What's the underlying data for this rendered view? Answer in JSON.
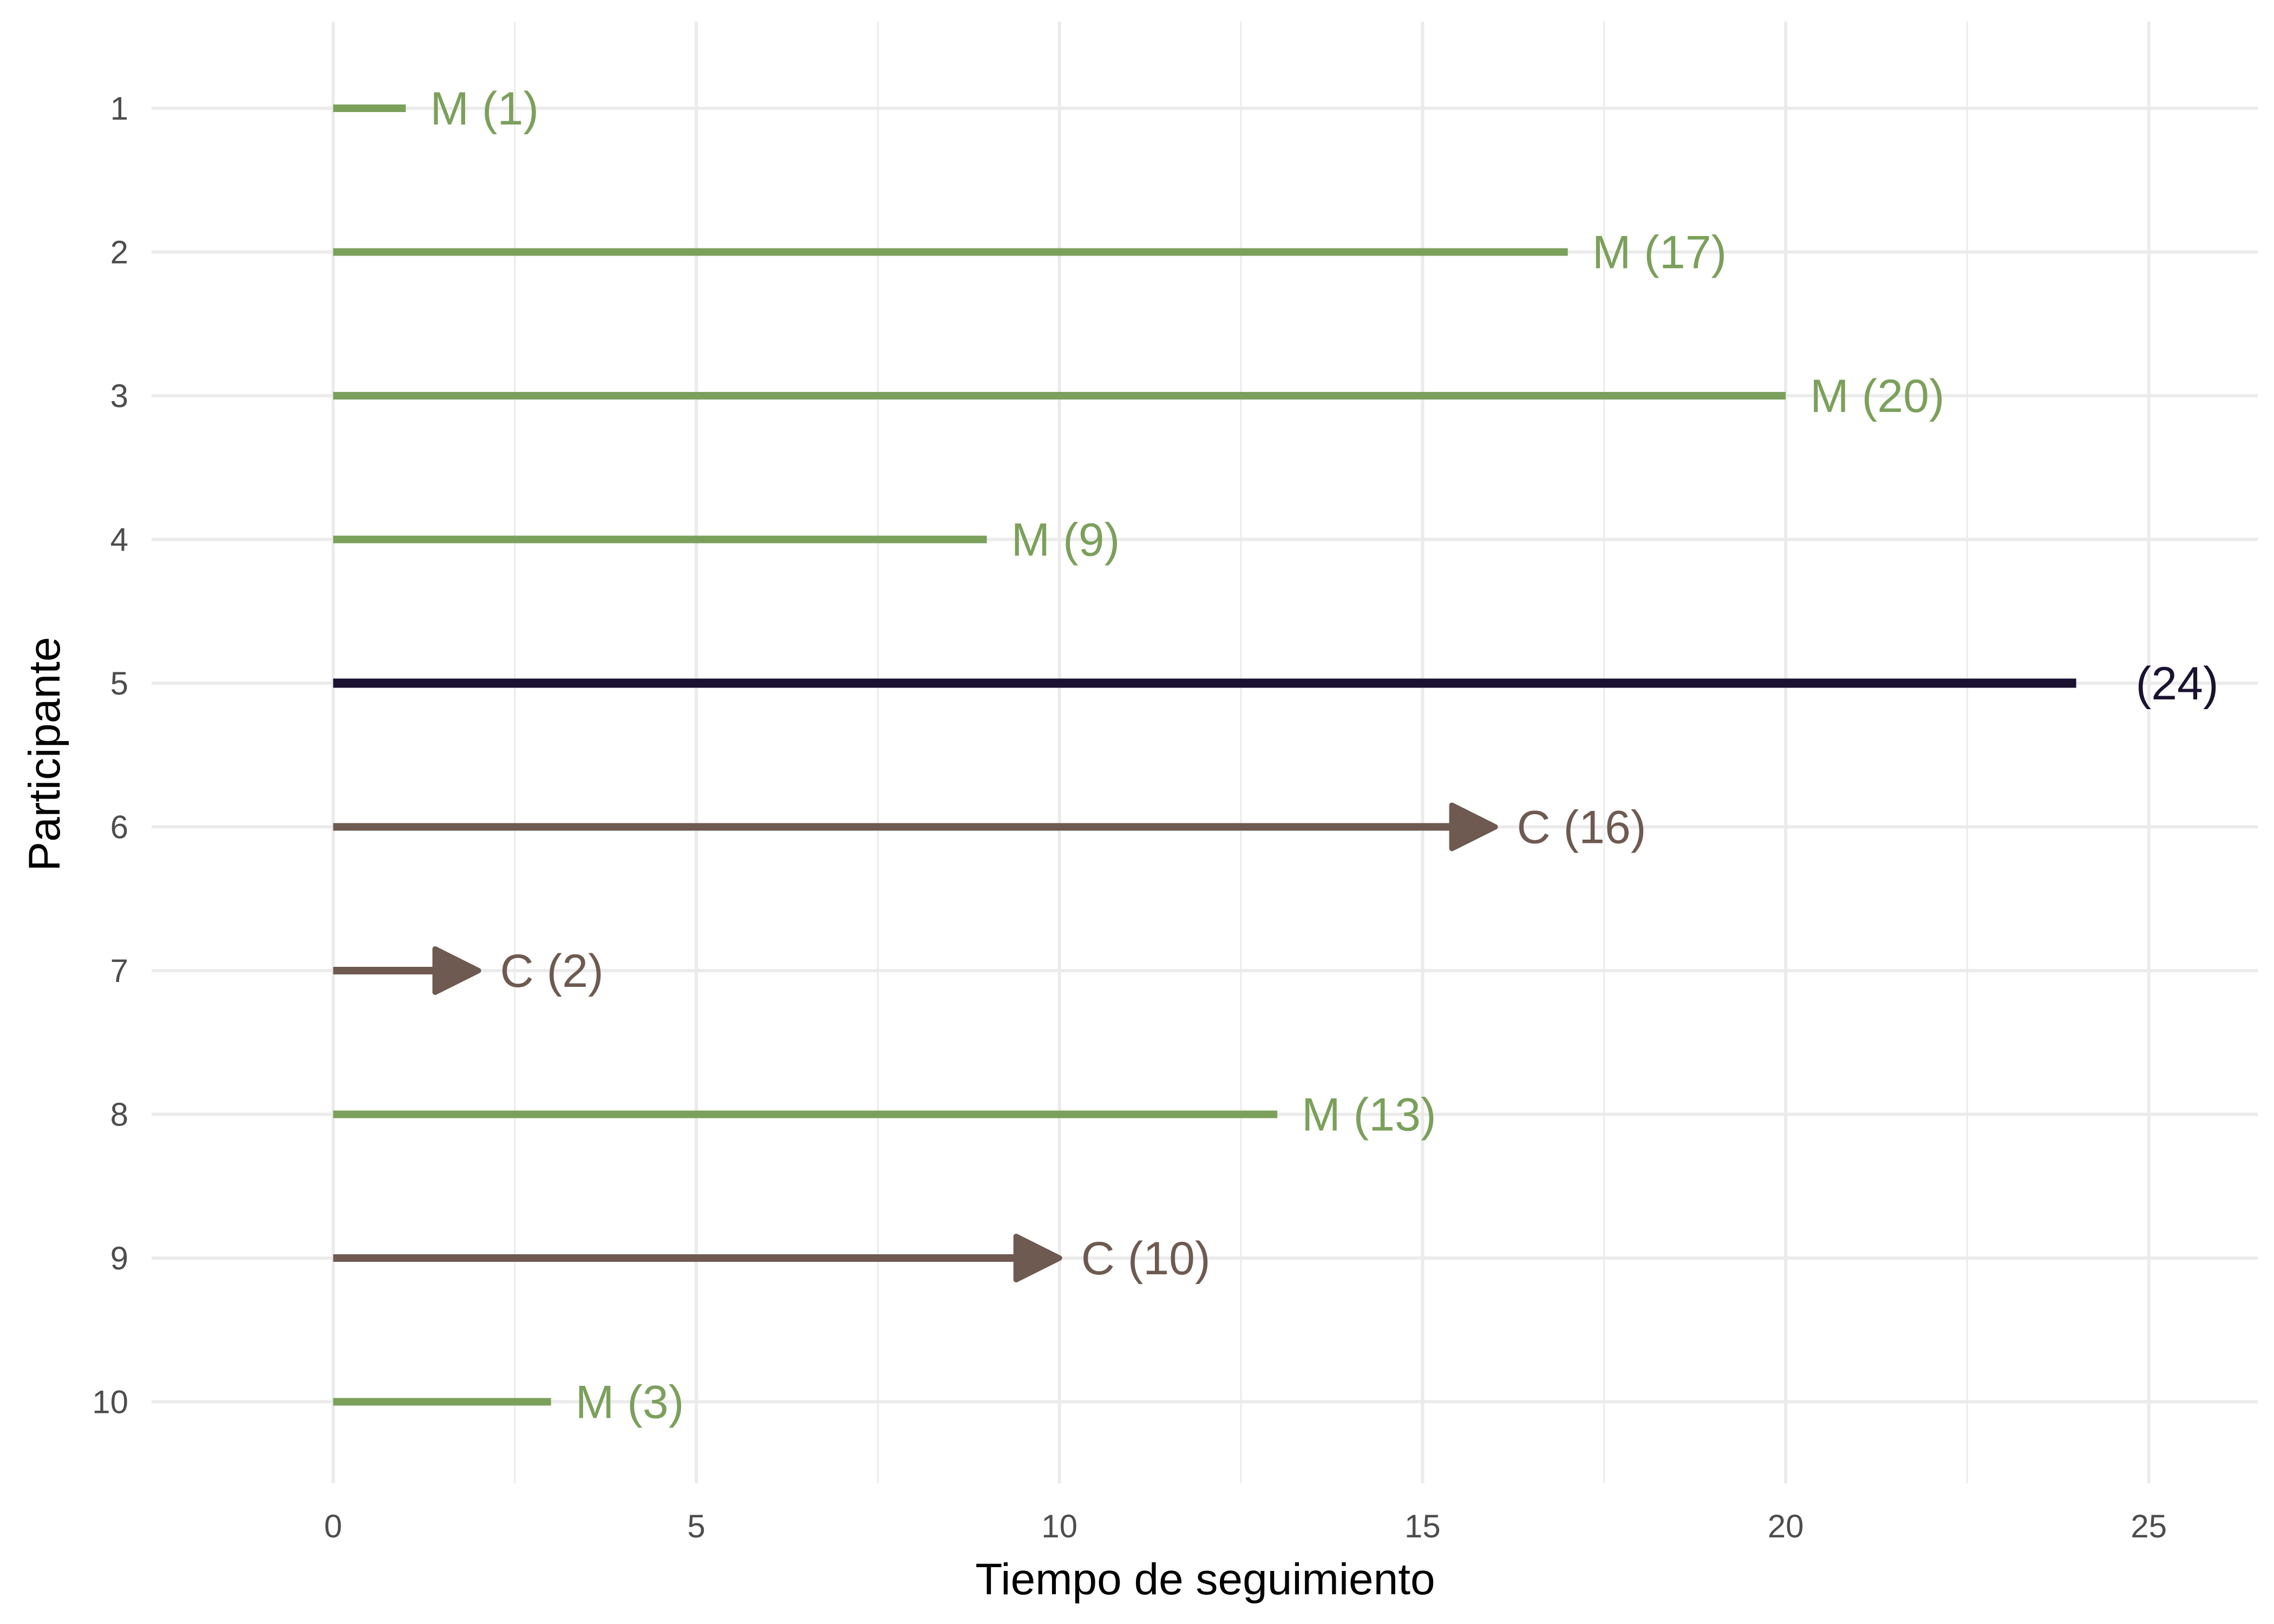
{
  "chart_data": {
    "type": "bar",
    "orientation": "horizontal",
    "xlabel": "Tiempo de seguimiento",
    "ylabel": "Participante",
    "xlim": [
      -2.5,
      26.5
    ],
    "xticks": [
      "0",
      "5",
      "10",
      "15",
      "20",
      "25"
    ],
    "grid": true,
    "colors": {
      "M": "#7ba05b",
      "C": "#6e5a50",
      "none": "#1a1230",
      "grid": "#ebebeb",
      "tick": "#4d4d4d"
    },
    "participants": [
      {
        "id": "1",
        "time": 1,
        "status": "M",
        "label": "M (1)"
      },
      {
        "id": "2",
        "time": 17,
        "status": "M",
        "label": "M (17)"
      },
      {
        "id": "3",
        "time": 20,
        "status": "M",
        "label": "M (20)"
      },
      {
        "id": "4",
        "time": 9,
        "status": "M",
        "label": "M (9)"
      },
      {
        "id": "5",
        "time": 24,
        "status": "none",
        "label": "(24)"
      },
      {
        "id": "6",
        "time": 16,
        "status": "C",
        "label": "C (16)"
      },
      {
        "id": "7",
        "time": 2,
        "status": "C",
        "label": "C (2)"
      },
      {
        "id": "8",
        "time": 13,
        "status": "M",
        "label": "M (13)"
      },
      {
        "id": "9",
        "time": 10,
        "status": "C",
        "label": "C (10)"
      },
      {
        "id": "10",
        "time": 3,
        "status": "M",
        "label": "M (3)"
      }
    ]
  }
}
